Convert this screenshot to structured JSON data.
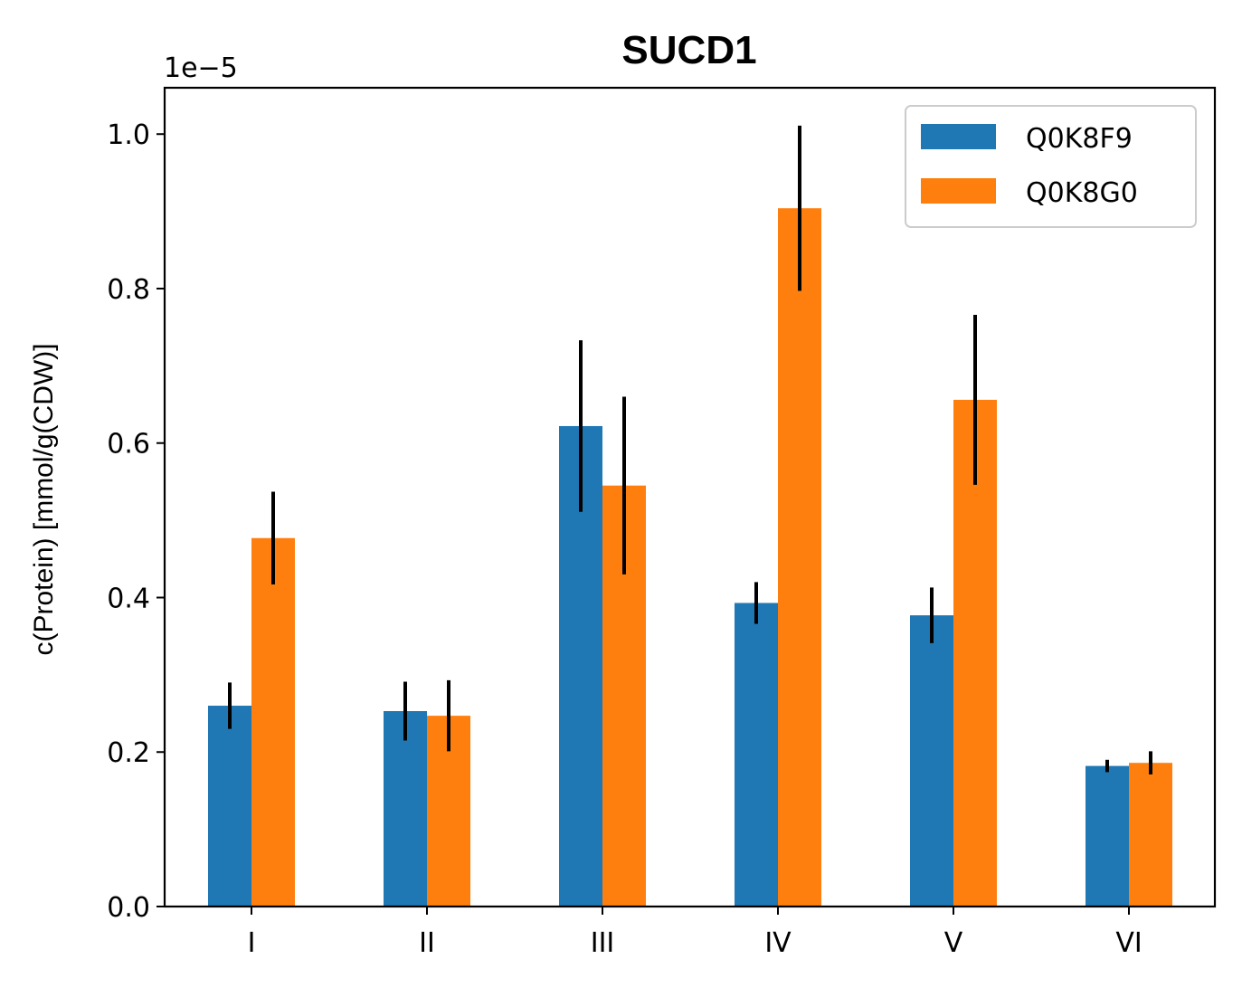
{
  "chart_data": {
    "type": "bar",
    "title": "SUCD1",
    "xlabel": "",
    "ylabel": "c(Protein) [mmol/g(CDW)]",
    "offset_text": "1e−5",
    "categories": [
      "I",
      "II",
      "III",
      "IV",
      "V",
      "VI"
    ],
    "ylim": [
      0,
      1.06
    ],
    "yticks": [
      0.0,
      0.2,
      0.4,
      0.6,
      0.8,
      1.0
    ],
    "ytick_labels": [
      "0.0",
      "0.2",
      "0.4",
      "0.6",
      "0.8",
      "1.0"
    ],
    "grid": false,
    "legend_position": "top-right",
    "series": [
      {
        "name": "Q0K8F9",
        "color": "#1f77b4",
        "values": [
          0.26,
          0.253,
          0.622,
          0.393,
          0.377,
          0.182
        ],
        "errors": [
          0.03,
          0.038,
          0.111,
          0.027,
          0.036,
          0.008
        ]
      },
      {
        "name": "Q0K8G0",
        "color": "#ff7f0e",
        "values": [
          0.477,
          0.247,
          0.545,
          0.904,
          0.656,
          0.186
        ],
        "errors": [
          0.06,
          0.046,
          0.115,
          0.107,
          0.11,
          0.015
        ]
      }
    ]
  }
}
